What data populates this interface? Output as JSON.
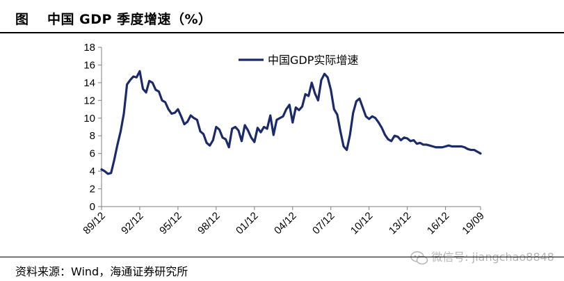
{
  "header": {
    "prefix": "图",
    "title": "中国 GDP 季度增速（%）"
  },
  "source": {
    "text": "资料来源：Wind，海通证券研究所"
  },
  "watermark": {
    "icon": "wechat-icon",
    "text": "微信号: jiangchao8848"
  },
  "colors": {
    "series": "#1a2a6c",
    "axis": "#7f7f7f",
    "text": "#000000"
  },
  "chart_data": {
    "type": "line",
    "title": "中国 GDP 季度增速（%）",
    "ylabel": "",
    "xlabel": "",
    "ylim": [
      0,
      18
    ],
    "yticks": [
      0,
      2,
      4,
      6,
      8,
      10,
      12,
      14,
      16,
      18
    ],
    "x_range": [
      "89/12",
      "19/09"
    ],
    "x_tick_labels": [
      "89/12",
      "92/12",
      "95/12",
      "98/12",
      "01/12",
      "04/12",
      "07/12",
      "10/12",
      "13/12",
      "16/12",
      "19/09"
    ],
    "legend": {
      "position": "top-center",
      "entries": [
        "中国GDP实际增速"
      ]
    },
    "grid": false,
    "series": [
      {
        "name": "中国GDP实际增速",
        "x": [
          "89/12",
          "90/03",
          "90/06",
          "90/09",
          "90/12",
          "91/03",
          "91/06",
          "91/09",
          "91/12",
          "92/03",
          "92/06",
          "92/09",
          "92/12",
          "93/03",
          "93/06",
          "93/09",
          "93/12",
          "94/03",
          "94/06",
          "94/09",
          "94/12",
          "95/03",
          "95/06",
          "95/09",
          "95/12",
          "96/03",
          "96/06",
          "96/09",
          "96/12",
          "97/03",
          "97/06",
          "97/09",
          "97/12",
          "98/03",
          "98/06",
          "98/09",
          "98/12",
          "99/03",
          "99/06",
          "99/09",
          "99/12",
          "00/03",
          "00/06",
          "00/09",
          "00/12",
          "01/03",
          "01/06",
          "01/09",
          "01/12",
          "02/03",
          "02/06",
          "02/09",
          "02/12",
          "03/03",
          "03/06",
          "03/09",
          "03/12",
          "04/03",
          "04/06",
          "04/09",
          "04/12",
          "05/03",
          "05/06",
          "05/09",
          "05/12",
          "06/03",
          "06/06",
          "06/09",
          "06/12",
          "07/03",
          "07/06",
          "07/09",
          "07/12",
          "08/03",
          "08/06",
          "08/09",
          "08/12",
          "09/03",
          "09/06",
          "09/09",
          "09/12",
          "10/03",
          "10/06",
          "10/09",
          "10/12",
          "11/03",
          "11/06",
          "11/09",
          "11/12",
          "12/03",
          "12/06",
          "12/09",
          "12/12",
          "13/03",
          "13/06",
          "13/09",
          "13/12",
          "14/03",
          "14/06",
          "14/09",
          "14/12",
          "15/03",
          "15/06",
          "15/09",
          "15/12",
          "16/03",
          "16/06",
          "16/09",
          "16/12",
          "17/03",
          "17/06",
          "17/09",
          "17/12",
          "18/03",
          "18/06",
          "18/09",
          "18/12",
          "19/03",
          "19/06",
          "19/09"
        ],
        "values": [
          4.2,
          4.0,
          3.7,
          3.8,
          5.3,
          7.0,
          8.5,
          10.5,
          13.8,
          14.3,
          14.7,
          14.6,
          15.3,
          13.3,
          12.9,
          14.2,
          14.0,
          13.2,
          13.0,
          12.0,
          11.8,
          11.0,
          10.5,
          10.6,
          11.0,
          10.2,
          9.3,
          9.6,
          10.3,
          10.0,
          9.8,
          8.5,
          8.2,
          7.2,
          6.9,
          7.5,
          9.0,
          8.7,
          7.8,
          7.6,
          6.7,
          8.8,
          9.0,
          8.6,
          7.4,
          9.2,
          8.6,
          7.8,
          7.3,
          8.9,
          8.4,
          9.0,
          8.8,
          10.3,
          8.1,
          9.8,
          10.0,
          10.2,
          11.0,
          11.5,
          9.5,
          11.2,
          10.9,
          11.3,
          12.7,
          12.5,
          14.0,
          12.8,
          12.0,
          14.3,
          15.0,
          14.6,
          13.2,
          11.0,
          10.4,
          8.5,
          6.8,
          6.4,
          8.1,
          10.6,
          11.9,
          12.2,
          11.2,
          10.2,
          9.9,
          10.2,
          10.0,
          9.5,
          8.9,
          8.1,
          7.6,
          7.4,
          8.0,
          7.9,
          7.5,
          7.8,
          7.7,
          7.4,
          7.5,
          7.1,
          7.2,
          7.0,
          7.0,
          6.9,
          6.8,
          6.7,
          6.7,
          6.7,
          6.8,
          6.9,
          6.8,
          6.8,
          6.8,
          6.8,
          6.7,
          6.5,
          6.4,
          6.4,
          6.2,
          6.0
        ]
      }
    ]
  }
}
